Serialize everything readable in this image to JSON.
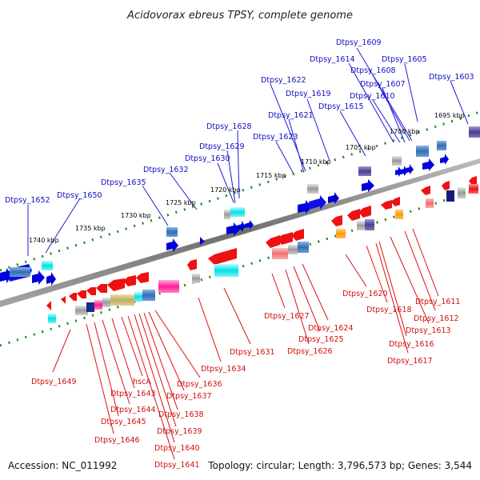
{
  "title": "Acidovorax ebreus TPSY, complete genome",
  "accession": "Accession: NC_011992",
  "summary": "Topology: circular; Length: 3,796,573 bp; Genes: 3,544",
  "colors": {
    "forward_label": "#1010c0",
    "reverse_label": "#d01010",
    "backbone": "#8a8a8a",
    "tick": "#1a8a1a"
  },
  "scale_ticks": [
    "1740 kbp",
    "1735 kbp",
    "1730 kbp",
    "1725 kbp",
    "1720 kbp",
    "1715 kbp",
    "1710 kbp",
    "1705 kbp",
    "1700 kbp",
    "1695 kbp"
  ],
  "forward_genes": [
    "Dtpsy_1652",
    "Dtpsy_1650",
    "Dtpsy_1635",
    "Dtpsy_1632",
    "Dtpsy_1630",
    "Dtpsy_1629",
    "Dtpsy_1628",
    "Dtpsy_1623",
    "Dtpsy_1621",
    "Dtpsy_1622",
    "Dtpsy_1619",
    "Dtpsy_1615",
    "Dtpsy_1614",
    "Dtpsy_1610",
    "Dtpsy_1607",
    "Dtpsy_1608",
    "Dtpsy_1609",
    "Dtpsy_1605",
    "Dtpsy_1603"
  ],
  "reverse_genes": [
    "Dtpsy_1649",
    "Dtpsy_1646",
    "Dtpsy_1645",
    "Dtpsy_1644",
    "Dtpsy_1643",
    "hscA",
    "Dtpsy_1641",
    "Dtpsy_1640",
    "Dtpsy_1639",
    "Dtpsy_1638",
    "Dtpsy_1637",
    "Dtpsy_1636",
    "Dtpsy_1634",
    "Dtpsy_1631",
    "Dtpsy_1627",
    "Dtpsy_1626",
    "Dtpsy_1625",
    "Dtpsy_1624",
    "Dtpsy_1620",
    "Dtpsy_1618",
    "Dtpsy_1617",
    "Dtpsy_1616",
    "Dtpsy_1613",
    "Dtpsy_1612",
    "Dtpsy_1611"
  ]
}
